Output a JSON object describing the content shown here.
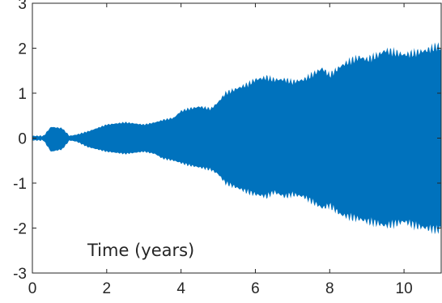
{
  "chart_data": {
    "type": "area",
    "xlabel": "Time (years)",
    "ylabel": "",
    "xlim": [
      0,
      11
    ],
    "ylim": [
      -3,
      3
    ],
    "x_ticks": [
      0,
      2,
      4,
      6,
      8,
      10
    ],
    "y_ticks": [
      -3,
      -2,
      -1,
      0,
      1,
      2,
      3
    ],
    "grid": false,
    "legend": "none",
    "fill_color": "#0072BD",
    "series": [
      {
        "x": [
          0,
          0.3,
          0.5,
          0.8,
          1.0,
          1.2,
          1.5,
          2.0,
          2.5,
          3.0,
          3.3,
          3.5,
          3.8,
          4.0,
          4.2,
          4.5,
          4.8,
          5.0,
          5.2,
          5.5,
          5.8,
          6.0,
          6.3,
          6.5,
          6.8,
          7.0,
          7.3,
          7.5,
          7.8,
          8.0,
          8.3,
          8.5,
          8.8,
          9.0,
          9.3,
          9.5,
          9.8,
          10.0,
          10.3,
          10.6,
          10.9,
          11.0
        ],
        "upper": [
          0.05,
          0.05,
          0.25,
          0.22,
          0.05,
          0.08,
          0.15,
          0.3,
          0.35,
          0.3,
          0.35,
          0.4,
          0.45,
          0.6,
          0.65,
          0.7,
          0.65,
          0.8,
          1.0,
          1.1,
          1.2,
          1.3,
          1.35,
          1.3,
          1.3,
          1.25,
          1.3,
          1.4,
          1.55,
          1.4,
          1.6,
          1.7,
          1.8,
          1.75,
          1.85,
          1.95,
          1.9,
          1.85,
          1.9,
          1.95,
          2.05,
          2.0
        ],
        "lower": [
          -0.05,
          -0.05,
          -0.3,
          -0.25,
          -0.05,
          -0.08,
          -0.2,
          -0.3,
          -0.35,
          -0.3,
          -0.35,
          -0.45,
          -0.5,
          -0.55,
          -0.6,
          -0.65,
          -0.7,
          -0.8,
          -1.0,
          -1.1,
          -1.2,
          -1.25,
          -1.3,
          -1.2,
          -1.3,
          -1.25,
          -1.3,
          -1.4,
          -1.55,
          -1.5,
          -1.7,
          -1.75,
          -1.8,
          -1.85,
          -1.9,
          -1.95,
          -1.9,
          -1.85,
          -1.95,
          -2.0,
          -2.05,
          -2.0
        ]
      }
    ]
  }
}
